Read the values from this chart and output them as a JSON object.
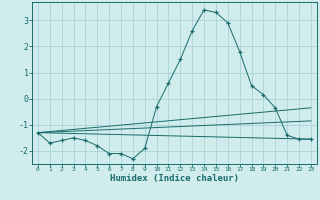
{
  "title": "",
  "xlabel": "Humidex (Indice chaleur)",
  "ylabel": "",
  "bg_color": "#d0ecec",
  "grid_color": "#aad4d4",
  "line_color": "#1a6b6b",
  "xlim": [
    -0.5,
    23.5
  ],
  "ylim": [
    -2.5,
    3.7
  ],
  "yticks": [
    -2,
    -1,
    0,
    1,
    2,
    3
  ],
  "xticks": [
    0,
    1,
    2,
    3,
    4,
    5,
    6,
    7,
    8,
    9,
    10,
    11,
    12,
    13,
    14,
    15,
    16,
    17,
    18,
    19,
    20,
    21,
    22,
    23
  ],
  "main_line": {
    "x": [
      0,
      1,
      2,
      3,
      4,
      5,
      6,
      7,
      8,
      9,
      10,
      11,
      12,
      13,
      14,
      15,
      16,
      17,
      18,
      19,
      20,
      21,
      22,
      23
    ],
    "y": [
      -1.3,
      -1.7,
      -1.6,
      -1.5,
      -1.6,
      -1.8,
      -2.1,
      -2.1,
      -2.3,
      -1.9,
      -0.3,
      0.6,
      1.5,
      2.6,
      3.4,
      3.3,
      2.9,
      1.8,
      0.5,
      0.15,
      -0.35,
      -1.4,
      -1.55,
      -1.55
    ]
  },
  "fan_lines": [
    {
      "x": [
        0,
        23
      ],
      "y": [
        -1.3,
        -1.55
      ]
    },
    {
      "x": [
        0,
        23
      ],
      "y": [
        -1.3,
        -0.85
      ]
    },
    {
      "x": [
        0,
        23
      ],
      "y": [
        -1.3,
        -0.35
      ]
    }
  ]
}
